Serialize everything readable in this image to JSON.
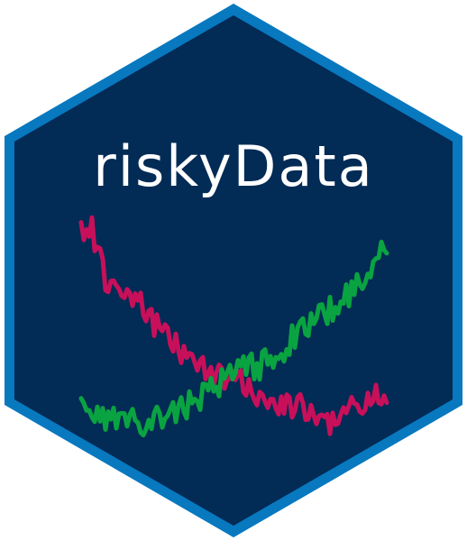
{
  "logo": {
    "title": "riskyData",
    "colors": {
      "background": "#ffffff",
      "border": "#0878bf",
      "fill": "#022b55",
      "text": "#ffffff",
      "series_declining": "#c8105a",
      "series_rising": "#0aa341"
    }
  }
}
